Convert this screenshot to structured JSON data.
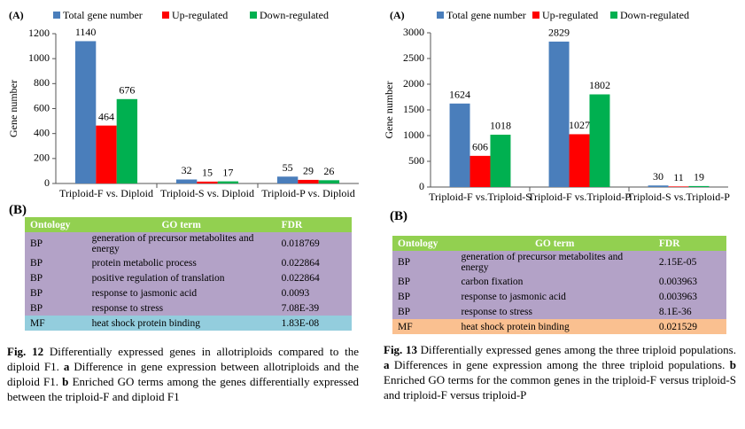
{
  "chart_data": [
    {
      "type": "bar",
      "label": "(A)",
      "ylabel": "Gene number",
      "categories": [
        "Triploid-F vs. Diploid",
        "Triploid-S vs. Diploid",
        "Triploid-P vs. Diploid"
      ],
      "series": [
        {
          "name": "Total gene number",
          "color": "#4a7ebb",
          "values": [
            1140,
            32,
            55
          ]
        },
        {
          "name": "Up-regulated",
          "color": "#ff0000",
          "values": [
            464,
            15,
            29
          ]
        },
        {
          "name": "Down-regulated",
          "color": "#00b050",
          "values": [
            676,
            17,
            26
          ]
        }
      ],
      "ylim": [
        0,
        1200
      ],
      "yticks": [
        0,
        200,
        400,
        600,
        800,
        1000,
        1200
      ],
      "grid": false,
      "legend": "top"
    },
    {
      "type": "bar",
      "label": "(A)",
      "ylabel": "Gene number",
      "categories": [
        "Triploid-F vs.Triploid-S",
        "Triploid-F vs.Triploid-P",
        "Triploid-S vs.Triploid-P"
      ],
      "series": [
        {
          "name": "Total gene number",
          "color": "#4a7ebb",
          "values": [
            1624,
            2829,
            30
          ]
        },
        {
          "name": "Up-regulated",
          "color": "#ff0000",
          "values": [
            606,
            1027,
            11
          ]
        },
        {
          "name": "Down-regulated",
          "color": "#00b050",
          "values": [
            1018,
            1802,
            19
          ]
        }
      ],
      "ylim": [
        0,
        3000
      ],
      "yticks": [
        0,
        500,
        1000,
        1500,
        2000,
        2500,
        3000
      ],
      "grid": false,
      "legend": "top"
    }
  ],
  "tables": [
    {
      "label": "(B)",
      "header_color": "#92d050",
      "row_color": "#b3a2c7",
      "last_row_color": "#93cddd",
      "columns": [
        "Ontology",
        "GO term",
        "FDR"
      ],
      "rows": [
        [
          "BP",
          "generation of precursor metabolites and energy",
          "0.018769"
        ],
        [
          "BP",
          "protein metabolic process",
          "0.022864"
        ],
        [
          "BP",
          "positive regulation of translation",
          "0.022864"
        ],
        [
          "BP",
          "response to jasmonic acid",
          "0.0093"
        ],
        [
          "BP",
          "response to stress",
          "7.08E-39"
        ],
        [
          "MF",
          "heat shock protein binding",
          "1.83E-08"
        ]
      ]
    },
    {
      "label": "(B)",
      "header_color": "#92d050",
      "row_color": "#b3a2c7",
      "last_row_color": "#fac090",
      "columns": [
        "Ontology",
        "GO term",
        "FDR"
      ],
      "rows": [
        [
          "BP",
          "generation of precursor metabolites and energy",
          "2.15E-05"
        ],
        [
          "BP",
          "carbon fixation",
          "0.003963"
        ],
        [
          "BP",
          "response to jasmonic acid",
          "0.003963"
        ],
        [
          "BP",
          "response to stress",
          "8.1E-36"
        ],
        [
          "MF",
          "heat shock protein binding",
          "0.021529"
        ]
      ]
    }
  ],
  "captions": [
    [
      "Fig. 12",
      "Differentially expressed genes in allotriploids compared to the diploid F1.",
      "a",
      "Difference in gene expression between allotriploids and the diploid F1.",
      "b",
      "Enriched GO terms among the genes differentially expressed between the triploid-F and diploid F1"
    ],
    [
      "Fig. 13",
      "Differentially expressed genes among the three triploid populations.",
      "a",
      "Differences in gene expression among the three triploid populations.",
      "b",
      "Enriched GO terms for the common genes in the triploid-F versus triploid-S and triploid-F versus triploid-P"
    ]
  ]
}
